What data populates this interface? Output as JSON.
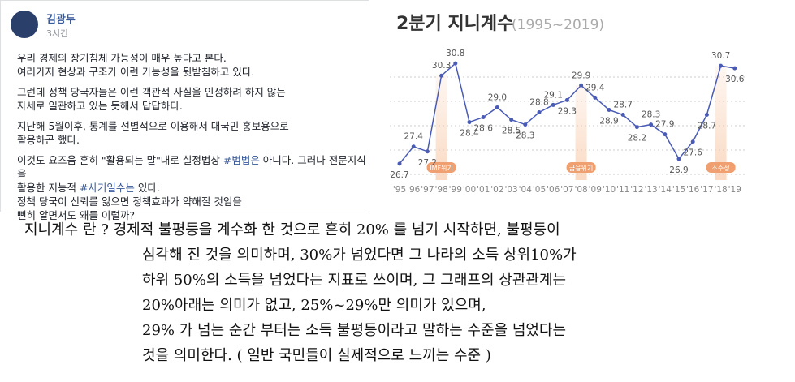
{
  "post": {
    "author": "김광두",
    "time": "3시간",
    "paragraphs": [
      [
        [
          "우리 경제의 장기침체 가능성이 매우 높다고 본다."
        ],
        [
          "여러가지 현상과 구조가 이런 가능성을 뒷받침하고 있다."
        ]
      ],
      [
        [
          "그런데 정책 당국자들은 이런 객관적 사실을 인정하려 하지 않는"
        ],
        [
          "자세로 일관하고 있는 듯해서 답답하다."
        ]
      ],
      [
        [
          "지난해 5월이후, 통계를 선별적으로 이용해서 대국민 홍보용으로"
        ],
        [
          "활용하곤 했다."
        ]
      ],
      [
        [
          "이것도 요즈음 흔히 \"활용되는 말\"대로 실정법상 ",
          "#범법은",
          " 아니다. 그러나 전문지식을"
        ],
        [
          "활용한 지능적 ",
          "#사기일수는",
          " 있다."
        ],
        [
          "정책 당국이 신뢰를 잃으면 정책효과가 약해질 것임을"
        ],
        [
          "뻔히 알면서도 왜들 이럴까?"
        ]
      ]
    ]
  },
  "chart_data": {
    "type": "line",
    "title": "2분기 지니계수",
    "subtitle": "(1995~2019)",
    "categories": [
      "'95",
      "'96",
      "'97",
      "'98",
      "'99",
      "'00",
      "'01",
      "'02",
      "'03",
      "'04",
      "'05",
      "'06",
      "'07",
      "'08",
      "'09",
      "'10",
      "'11",
      "'12",
      "'13",
      "'14",
      "'15",
      "'16",
      "'17",
      "'18",
      "'19"
    ],
    "values": [
      26.7,
      27.4,
      27.2,
      30.3,
      30.8,
      28.4,
      28.6,
      29.0,
      28.5,
      28.3,
      28.8,
      29.1,
      29.3,
      29.9,
      29.4,
      28.9,
      28.7,
      28.2,
      28.3,
      27.9,
      26.9,
      27.6,
      28.7,
      30.7,
      30.6
    ],
    "value_labels": [
      "26.7",
      "27.4",
      "27.2",
      "30.3",
      "30.8",
      "28.4",
      "28.6",
      "29.0",
      "28.5",
      "28.3",
      "28.8",
      "29.1",
      "29.3",
      "29.9",
      "29.4",
      "28.9",
      "28.7",
      "28.2",
      "28.3",
      "27.9",
      "26.9",
      "27.6",
      "28.7",
      "30.7",
      "30.6"
    ],
    "color": "#4a5bb5",
    "ylim": [
      26,
      31.5
    ],
    "annotations": [
      {
        "text": "IMF위기",
        "x": "'98"
      },
      {
        "text": "금융위기",
        "x": "'08"
      },
      {
        "text": "소주성",
        "x": "'18"
      }
    ]
  },
  "caption": {
    "lines": [
      "지니계수 란 ? 경제적 불평등을 계수화 한 것으로 흔히 20% 를 넘기 시작하면, 불평등이",
      "심각해 진 것을 의미하며, 30%가 넘었다면 그 나라의 소득 상위10%가",
      "하위 50%의 소득을 넘었다는 지표로 쓰이며, 그 그래프의 상관관계는",
      "20%아래는 의미가 없고, 25%~29%만 의미가 있으며,",
      "29% 가 넘는 순간 부터는 소득 불평등이라고 말하는 수준을 넘었다는",
      "것을 의미한다. ( 일반 국민들이 실제적으로 느끼는 수준 )"
    ]
  }
}
